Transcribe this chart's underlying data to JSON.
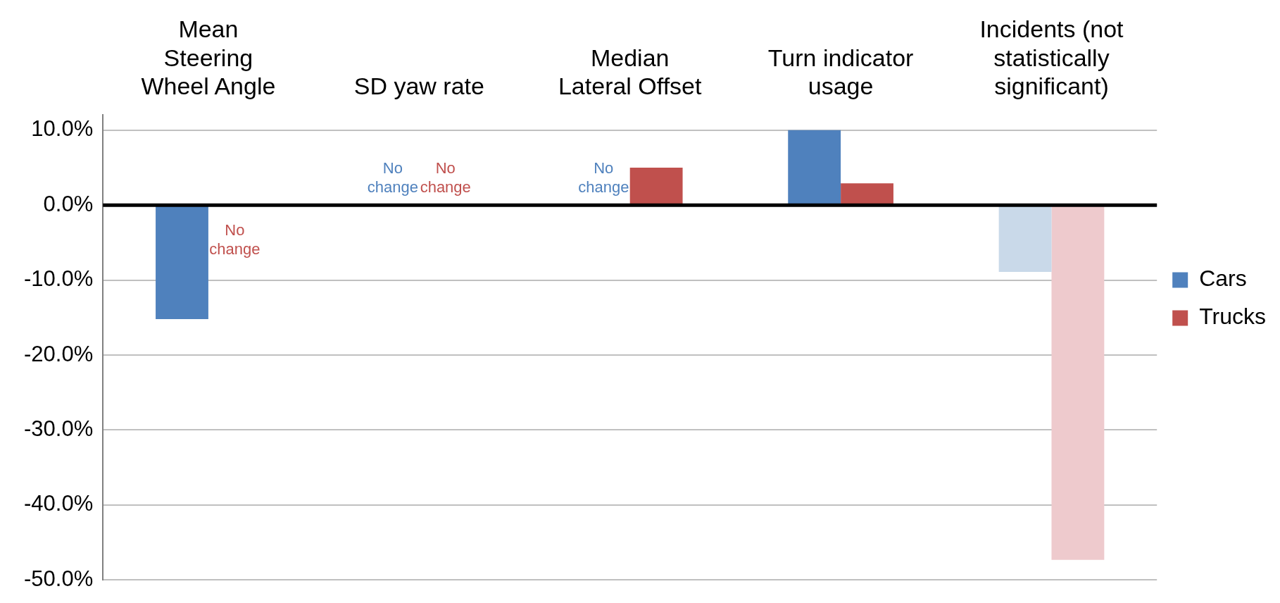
{
  "chart_data": {
    "type": "bar",
    "categories": [
      "Mean Steering Wheel Angle",
      "SD yaw rate",
      "Median Lateral Offset",
      "Turn indicator usage",
      "Incidents (not statistically significant)"
    ],
    "series": [
      {
        "name": "Cars",
        "color": "#4f81bd",
        "colors": [
          "#4f81bd",
          "#4f81bd",
          "#4f81bd",
          "#4f81bd",
          "#c9d9e9"
        ],
        "values": [
          -15.2,
          null,
          null,
          10.0,
          -8.9
        ]
      },
      {
        "name": "Trucks",
        "color": "#c0504d",
        "colors": [
          "#c0504d",
          "#c0504d",
          "#c0504d",
          "#c0504d",
          "#eecacd"
        ],
        "values": [
          null,
          null,
          5.0,
          2.9,
          -47.3
        ]
      }
    ],
    "ylim": [
      -50,
      12
    ],
    "yticks": [
      {
        "value": -50,
        "label": "-50.0%"
      },
      {
        "value": -40,
        "label": "-40.0%"
      },
      {
        "value": -30,
        "label": "-30.0%"
      },
      {
        "value": -20,
        "label": "-20.0%"
      },
      {
        "value": -10,
        "label": "-10.0%"
      },
      {
        "value": 0,
        "label": "0.0%"
      },
      {
        "value": 10,
        "label": "10.0%"
      }
    ],
    "grid": "y",
    "legend": "right",
    "annotations": [
      "No change",
      "No change",
      "No change",
      "No change"
    ]
  }
}
